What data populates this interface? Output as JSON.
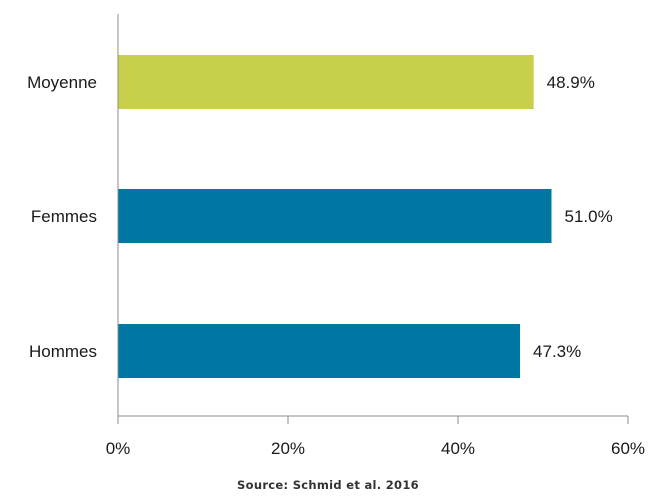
{
  "chart_data": {
    "type": "bar",
    "orientation": "horizontal",
    "categories": [
      "Moyenne",
      "Femmes",
      "Hommes"
    ],
    "values": [
      48.9,
      51.0,
      47.3
    ],
    "value_labels": [
      "48.9%",
      "51.0%",
      "47.3%"
    ],
    "colors": [
      "#c7d04a",
      "#0077a3",
      "#0077a3"
    ],
    "xlim": [
      0,
      60
    ],
    "x_ticks": [
      0,
      20,
      40,
      60
    ],
    "x_tick_labels": [
      "0%",
      "20%",
      "40%",
      "60%"
    ],
    "grid": false,
    "legend": "none",
    "source": "Source: Schmid et al. 2016"
  }
}
